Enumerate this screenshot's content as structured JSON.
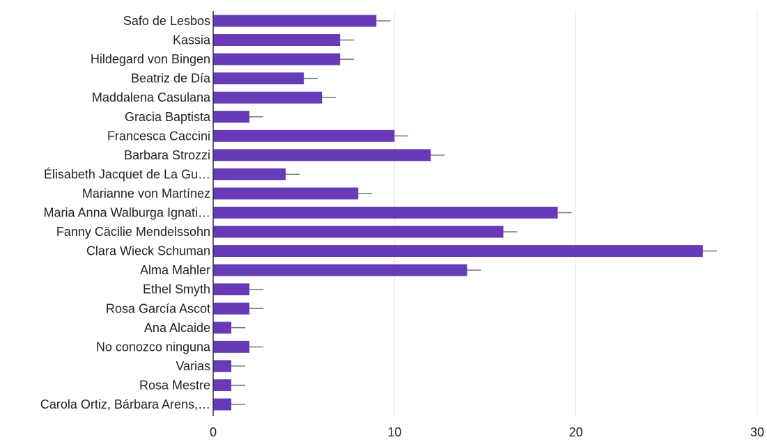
{
  "chart_data": {
    "type": "bar",
    "orientation": "horizontal",
    "categories": [
      "Safo de Lesbos",
      "Kassia",
      "Hildegard von Bingen",
      "Beatriz de Día",
      "Maddalena Casulana",
      "Gracia Baptista",
      "Francesca Caccini",
      "Barbara Strozzi",
      "Élisabeth Jacquet de La Gu…",
      "Marianne von Martínez",
      "Maria Anna Walburga Ignati…",
      "Fanny Cäcilie Mendelssohn",
      "Clara Wieck Schuman",
      "Alma Mahler",
      "Ethel Smyth",
      "Rosa García Ascot",
      "Ana Alcaide",
      "No conozco ninguna",
      "Varias",
      "Rosa Mestre",
      "Carola Ortiz, Bárbara Arens,…"
    ],
    "values": [
      9,
      7,
      7,
      5,
      6,
      2,
      10,
      12,
      4,
      8,
      19,
      16,
      27,
      14,
      2,
      2,
      1,
      2,
      1,
      1,
      1
    ],
    "error_bars": true,
    "xlim": [
      0,
      30
    ],
    "xticks": [
      0,
      10,
      20,
      30
    ],
    "grid": true,
    "bar_color": "#673ab7",
    "error_color": "#757575",
    "grid_color": "#e6e6e6",
    "axis_color": "#333333"
  }
}
